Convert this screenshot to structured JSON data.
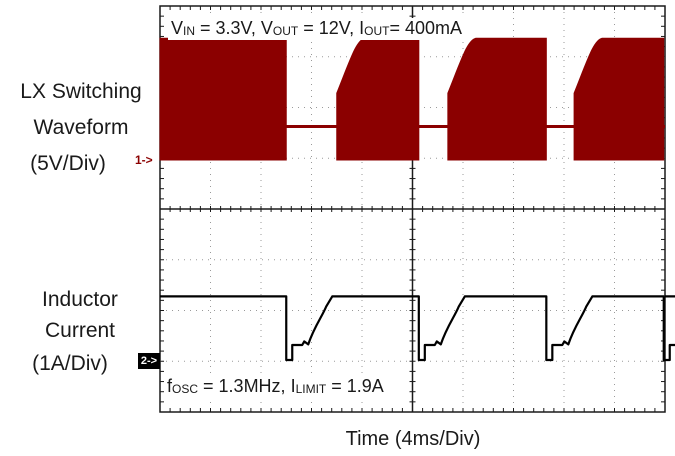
{
  "chart_data": {
    "type": "line",
    "xlabel": "Time (4ms/Div)",
    "x_divisions": 10,
    "x_per_div_ms": 4,
    "grid": true,
    "annotations": {
      "top": {
        "parts": [
          [
            "V",
            "IN",
            " = 3.3V, V"
          ],
          [
            "",
            "OUT",
            " = 12V, I"
          ],
          [
            "",
            "OUT",
            "= 400mA"
          ]
        ]
      },
      "bottom": {
        "parts": [
          [
            "f",
            "OSC",
            " = 1.3MHz, I"
          ],
          [
            "",
            "LIMIT",
            " = 1.9A"
          ]
        ]
      }
    },
    "series": [
      {
        "name": "LX Switching Waveform (5V/Div)",
        "color": "#8b0000",
        "volts_per_div": 5,
        "burst_ms": [
          [
            0.0,
            10.0
          ],
          [
            14.0,
            20.5
          ],
          [
            22.8,
            30.6
          ],
          [
            32.8,
            39.9
          ],
          [
            42.4,
            49.9
          ]
        ],
        "high_level_V": 12,
        "idle_level_V": 3.3
      },
      {
        "name": "Inductor Current (1A/Div)",
        "color": "#000000",
        "amps_per_div": 1,
        "steady_current_A": 0.8,
        "min_current_A": -0.8,
        "drop_ms": [
          10.0,
          20.5,
          30.6,
          39.9,
          49.9
        ]
      }
    ]
  },
  "labels": {
    "ch1_title": [
      "LX Switching",
      "Waveform",
      "(5V/Div)"
    ],
    "ch2_title": [
      "Inductor",
      "Current",
      "(1A/Div)"
    ],
    "ch1_marker": "1->",
    "ch2_marker": "2->"
  }
}
